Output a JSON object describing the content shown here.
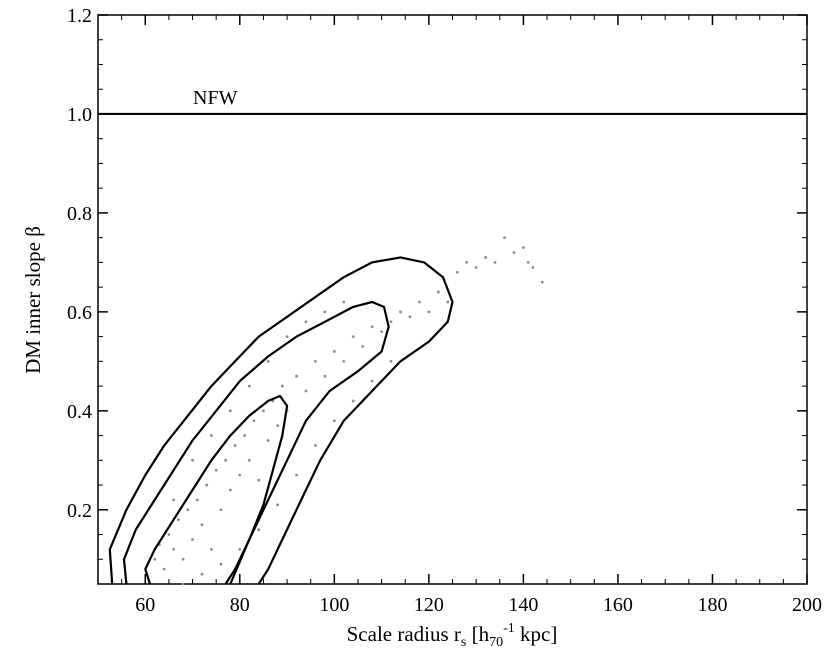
{
  "chart_data": {
    "type": "scatter",
    "xlabel": {
      "main": "Scale radius r",
      "sub_s": "s",
      "bracket_open": " [h",
      "sub_70": "70",
      "sup_m1": "-1",
      "tail": " kpc]"
    },
    "ylabel": "DM inner slope β",
    "xlim": [
      50,
      200
    ],
    "ylim": [
      0.05,
      1.2
    ],
    "x_ticks": [
      60,
      80,
      100,
      120,
      140,
      160,
      180,
      200
    ],
    "y_ticks": [
      0.2,
      0.4,
      0.6,
      0.8,
      1.0,
      1.2
    ],
    "y_tick_labels": [
      "0.2",
      "0.4",
      "0.6",
      "0.8",
      "1.0",
      "1.2"
    ],
    "reference_line": {
      "y": 1.0,
      "label": "NFW"
    },
    "point_color": "#8c8c8c",
    "line_color": "#000000",
    "scatter_points": [
      [
        62,
        0.1
      ],
      [
        63,
        0.13
      ],
      [
        64,
        0.08
      ],
      [
        65,
        0.15
      ],
      [
        66,
        0.12
      ],
      [
        67,
        0.18
      ],
      [
        68,
        0.1
      ],
      [
        69,
        0.2
      ],
      [
        70,
        0.14
      ],
      [
        71,
        0.22
      ],
      [
        72,
        0.17
      ],
      [
        73,
        0.25
      ],
      [
        74,
        0.12
      ],
      [
        75,
        0.28
      ],
      [
        76,
        0.2
      ],
      [
        77,
        0.3
      ],
      [
        78,
        0.24
      ],
      [
        79,
        0.33
      ],
      [
        80,
        0.27
      ],
      [
        81,
        0.35
      ],
      [
        82,
        0.3
      ],
      [
        83,
        0.38
      ],
      [
        84,
        0.26
      ],
      [
        85,
        0.4
      ],
      [
        86,
        0.34
      ],
      [
        87,
        0.42
      ],
      [
        88,
        0.37
      ],
      [
        89,
        0.45
      ],
      [
        90,
        0.4
      ],
      [
        92,
        0.47
      ],
      [
        94,
        0.44
      ],
      [
        96,
        0.5
      ],
      [
        98,
        0.47
      ],
      [
        100,
        0.52
      ],
      [
        102,
        0.5
      ],
      [
        104,
        0.55
      ],
      [
        106,
        0.53
      ],
      [
        108,
        0.57
      ],
      [
        110,
        0.56
      ],
      [
        112,
        0.58
      ],
      [
        114,
        0.6
      ],
      [
        116,
        0.59
      ],
      [
        118,
        0.62
      ],
      [
        120,
        0.6
      ],
      [
        122,
        0.64
      ],
      [
        124,
        0.62
      ],
      [
        126,
        0.68
      ],
      [
        128,
        0.7
      ],
      [
        130,
        0.69
      ],
      [
        132,
        0.71
      ],
      [
        134,
        0.7
      ],
      [
        136,
        0.75
      ],
      [
        138,
        0.72
      ],
      [
        140,
        0.73
      ],
      [
        141,
        0.7
      ],
      [
        142,
        0.69
      ],
      [
        144,
        0.66
      ],
      [
        66,
        0.22
      ],
      [
        70,
        0.3
      ],
      [
        74,
        0.35
      ],
      [
        78,
        0.4
      ],
      [
        82,
        0.45
      ],
      [
        86,
        0.5
      ],
      [
        90,
        0.55
      ],
      [
        94,
        0.58
      ],
      [
        98,
        0.6
      ],
      [
        102,
        0.62
      ],
      [
        64,
        0.25
      ],
      [
        68,
        0.05
      ],
      [
        72,
        0.07
      ],
      [
        76,
        0.09
      ],
      [
        80,
        0.12
      ],
      [
        84,
        0.16
      ],
      [
        88,
        0.21
      ],
      [
        92,
        0.27
      ],
      [
        96,
        0.33
      ],
      [
        100,
        0.38
      ],
      [
        104,
        0.42
      ],
      [
        108,
        0.46
      ],
      [
        112,
        0.5
      ]
    ],
    "contours": [
      {
        "level": "inner",
        "points": [
          [
            61,
            0.05
          ],
          [
            60,
            0.08
          ],
          [
            62,
            0.12
          ],
          [
            66,
            0.18
          ],
          [
            70,
            0.24
          ],
          [
            74,
            0.3
          ],
          [
            78,
            0.35
          ],
          [
            82,
            0.39
          ],
          [
            86,
            0.42
          ],
          [
            88.5,
            0.43
          ],
          [
            90,
            0.41
          ],
          [
            89,
            0.35
          ],
          [
            87,
            0.28
          ],
          [
            85,
            0.21
          ],
          [
            82,
            0.14
          ],
          [
            79,
            0.08
          ],
          [
            77,
            0.05
          ]
        ]
      },
      {
        "level": "middle",
        "points": [
          [
            56,
            0.05
          ],
          [
            55.5,
            0.1
          ],
          [
            58,
            0.16
          ],
          [
            62,
            0.22
          ],
          [
            66,
            0.28
          ],
          [
            70,
            0.34
          ],
          [
            75,
            0.4
          ],
          [
            80,
            0.46
          ],
          [
            86,
            0.51
          ],
          [
            92,
            0.55
          ],
          [
            98,
            0.58
          ],
          [
            104,
            0.61
          ],
          [
            108,
            0.62
          ],
          [
            110.5,
            0.61
          ],
          [
            111.5,
            0.57
          ],
          [
            110,
            0.52
          ],
          [
            105,
            0.48
          ],
          [
            99,
            0.44
          ],
          [
            94,
            0.38
          ],
          [
            90,
            0.3
          ],
          [
            86,
            0.22
          ],
          [
            82,
            0.14
          ],
          [
            78,
            0.05
          ]
        ]
      },
      {
        "level": "outer",
        "points": [
          [
            53,
            0.05
          ],
          [
            52.5,
            0.12
          ],
          [
            56,
            0.2
          ],
          [
            60,
            0.27
          ],
          [
            64,
            0.33
          ],
          [
            69,
            0.39
          ],
          [
            74,
            0.45
          ],
          [
            79,
            0.5
          ],
          [
            84,
            0.55
          ],
          [
            90,
            0.59
          ],
          [
            96,
            0.63
          ],
          [
            102,
            0.67
          ],
          [
            108,
            0.7
          ],
          [
            114,
            0.71
          ],
          [
            119,
            0.7
          ],
          [
            123,
            0.67
          ],
          [
            125,
            0.62
          ],
          [
            124,
            0.58
          ],
          [
            120,
            0.54
          ],
          [
            114,
            0.5
          ],
          [
            108,
            0.44
          ],
          [
            102,
            0.38
          ],
          [
            97,
            0.3
          ],
          [
            93,
            0.22
          ],
          [
            89,
            0.14
          ],
          [
            86,
            0.08
          ],
          [
            84,
            0.05
          ]
        ]
      }
    ]
  }
}
